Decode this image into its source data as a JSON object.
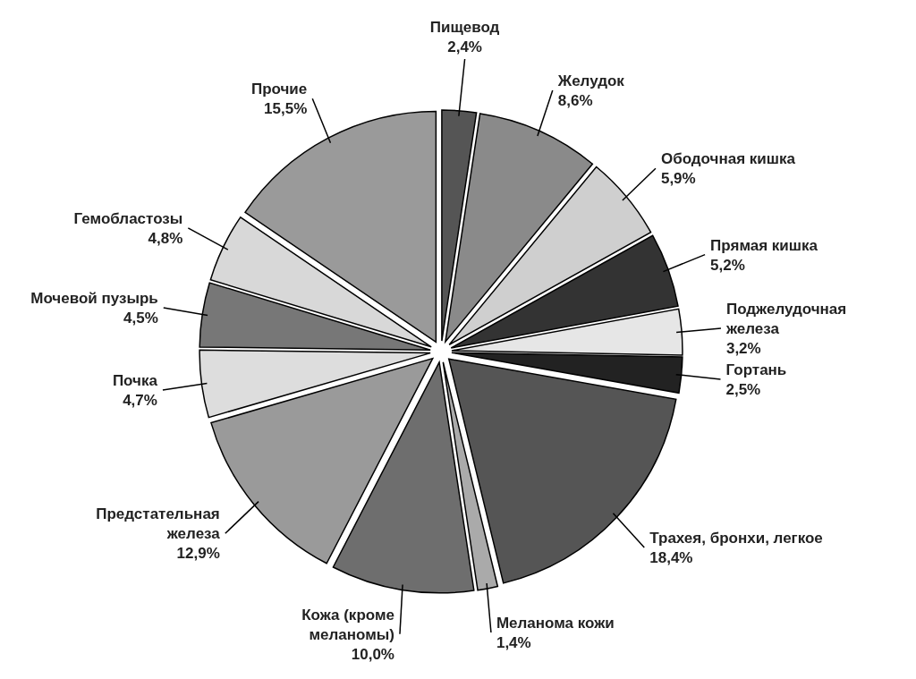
{
  "chart_data": {
    "type": "pie",
    "categories": [
      "Пищевод",
      "Желудок",
      "Ободочная кишка",
      "Прямая кишка",
      "Поджелудочная железа",
      "Гортань",
      "Трахея, бронхи, легкое",
      "Меланома кожи",
      "Кожа (кроме меланомы)",
      "Предстательная железа",
      "Почка",
      "Мочевой пузырь",
      "Гемобластозы",
      "Прочие"
    ],
    "values": [
      2.4,
      8.6,
      5.9,
      5.2,
      3.2,
      2.5,
      18.4,
      1.4,
      10.0,
      12.9,
      4.7,
      4.5,
      4.8,
      15.5
    ],
    "colors": [
      "#555555",
      "#8a8a8a",
      "#cfcfcf",
      "#333333",
      "#e6e6e6",
      "#222222",
      "#555555",
      "#aaaaaa",
      "#6e6e6e",
      "#9a9a9a",
      "#dddddd",
      "#777777",
      "#d8d8d8",
      "#9a9a9a"
    ],
    "value_labels": [
      "2,4%",
      "8,6%",
      "5,9%",
      "5,2%",
      "3,2%",
      "2,5%",
      "18,4%",
      "1,4%",
      "10,0%",
      "12,9%",
      "4,7%",
      "4,5%",
      "4,8%",
      "15,5%"
    ]
  }
}
